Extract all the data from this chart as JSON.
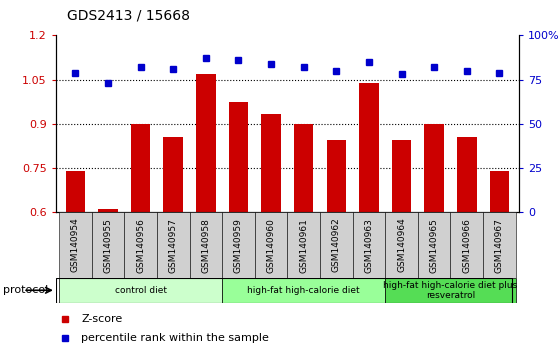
{
  "title": "GDS2413 / 15668",
  "samples": [
    "GSM140954",
    "GSM140955",
    "GSM140956",
    "GSM140957",
    "GSM140958",
    "GSM140959",
    "GSM140960",
    "GSM140961",
    "GSM140962",
    "GSM140963",
    "GSM140964",
    "GSM140965",
    "GSM140966",
    "GSM140967"
  ],
  "zscore": [
    0.74,
    0.61,
    0.9,
    0.855,
    1.07,
    0.975,
    0.935,
    0.9,
    0.845,
    1.04,
    0.845,
    0.9,
    0.855,
    0.74
  ],
  "percentile": [
    79,
    73,
    82,
    81,
    87,
    86,
    84,
    82,
    80,
    85,
    78,
    82,
    80,
    79
  ],
  "ylim_left": [
    0.6,
    1.2
  ],
  "ylim_right": [
    0,
    100
  ],
  "yticks_left": [
    0.6,
    0.75,
    0.9,
    1.05,
    1.2
  ],
  "ytick_labels_left": [
    "0.6",
    "0.75",
    "0.9",
    "1.05",
    "1.2"
  ],
  "yticks_right": [
    0,
    25,
    50,
    75,
    100
  ],
  "ytick_labels_right": [
    "0",
    "25",
    "50",
    "75",
    "100%"
  ],
  "bar_color": "#cc0000",
  "dot_color": "#0000cc",
  "grid_dotted_vals": [
    0.75,
    0.9,
    1.05
  ],
  "groups": [
    {
      "label": "control diet",
      "start": 0,
      "end": 4,
      "color": "#ccffcc"
    },
    {
      "label": "high-fat high-calorie diet",
      "start": 5,
      "end": 9,
      "color": "#99ff99"
    },
    {
      "label": "high-fat high-calorie diet plus\nresveratrol",
      "start": 10,
      "end": 13,
      "color": "#55dd55"
    }
  ],
  "protocol_label": "protocol",
  "legend_items": [
    {
      "color": "#cc0000",
      "label": "Z-score"
    },
    {
      "color": "#0000cc",
      "label": "percentile rank within the sample"
    }
  ],
  "xtick_bg_color": "#d0d0d0",
  "plot_bg_color": "#ffffff",
  "fig_bg_color": "#ffffff"
}
